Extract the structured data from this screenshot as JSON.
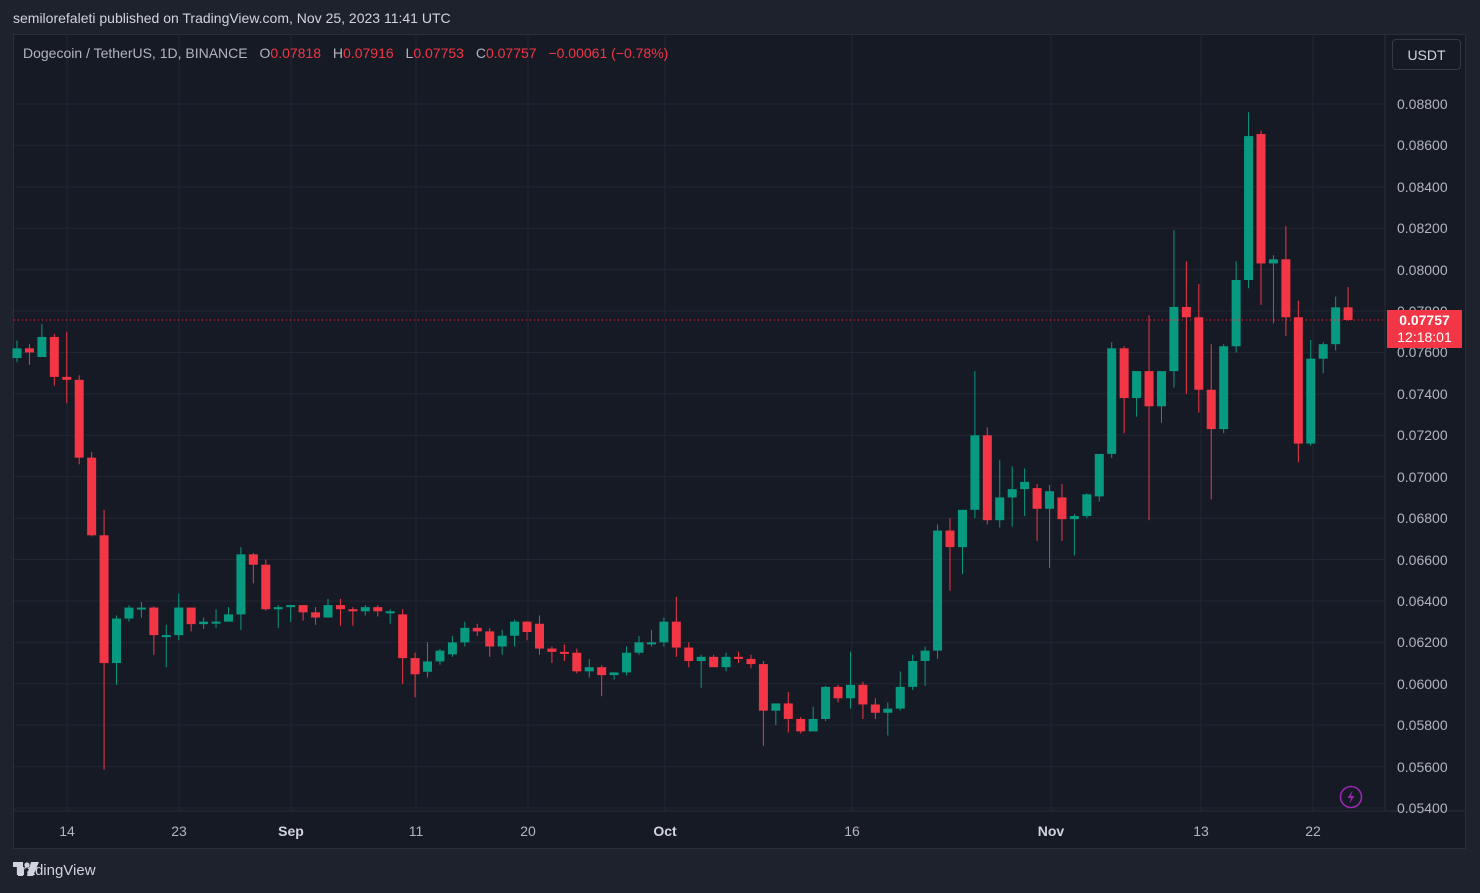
{
  "header": {
    "published_by": "semilorefaleti published on TradingView.com, Nov 25, 2023 11:41 UTC"
  },
  "legend": {
    "symbol": "Dogecoin / TetherUS, 1D, BINANCE",
    "open_label": "O",
    "open": "0.07818",
    "high_label": "H",
    "high": "0.07916",
    "low_label": "L",
    "low": "0.07753",
    "close_label": "C",
    "close": "0.07757",
    "change": "−0.00061 (−0.78%)"
  },
  "currency_button": "USDT",
  "last_price": {
    "value": "0.07757",
    "countdown": "12:18:01"
  },
  "price_axis": [
    "0.08800",
    "0.08600",
    "0.08400",
    "0.08200",
    "0.08000",
    "0.07800",
    "0.07600",
    "0.07400",
    "0.07200",
    "0.07000",
    "0.06800",
    "0.06600",
    "0.06400",
    "0.06200",
    "0.06000",
    "0.05800",
    "0.05600",
    "0.05400"
  ],
  "time_axis": [
    {
      "label": "14",
      "bold": false
    },
    {
      "label": "23",
      "bold": false
    },
    {
      "label": "Sep",
      "bold": true
    },
    {
      "label": "11",
      "bold": false
    },
    {
      "label": "20",
      "bold": false
    },
    {
      "label": "Oct",
      "bold": true
    },
    {
      "label": "16",
      "bold": false
    },
    {
      "label": "Nov",
      "bold": true
    },
    {
      "label": "13",
      "bold": false
    },
    {
      "label": "22",
      "bold": false
    }
  ],
  "footer": {
    "brand": "TradingView"
  },
  "colors": {
    "up": "#089981",
    "down": "#f23645",
    "background": "#161a25",
    "grid": "#232632",
    "text": "#b2b5be",
    "accent_bolt": "#9c27b0"
  },
  "chart_data": {
    "type": "candlestick",
    "title": "Dogecoin / TetherUS, 1D, BINANCE",
    "xlabel": "",
    "ylabel": "USDT",
    "ylim": [
      0.0535,
      0.0893
    ],
    "grid": true,
    "x_ticks": [
      "14",
      "23",
      "Sep",
      "11",
      "20",
      "Oct",
      "16",
      "Nov",
      "13",
      "22"
    ],
    "y_ticks": [
      0.054,
      0.056,
      0.058,
      0.06,
      0.062,
      0.064,
      0.066,
      0.068,
      0.07,
      0.072,
      0.074,
      0.076,
      0.078,
      0.08,
      0.082,
      0.084,
      0.086,
      0.088
    ],
    "last_price_line": 0.07757,
    "candles": [
      {
        "date": "Aug 10",
        "o": 0.07573,
        "h": 0.07658,
        "l": 0.07553,
        "c": 0.0762
      },
      {
        "date": "Aug 11",
        "o": 0.0762,
        "h": 0.0764,
        "l": 0.0754,
        "c": 0.076
      },
      {
        "date": "Aug 12",
        "o": 0.07578,
        "h": 0.07738,
        "l": 0.07578,
        "c": 0.07675
      },
      {
        "date": "Aug 13",
        "o": 0.07675,
        "h": 0.0769,
        "l": 0.0744,
        "c": 0.07482
      },
      {
        "date": "Aug 14",
        "o": 0.07482,
        "h": 0.077,
        "l": 0.07355,
        "c": 0.07468
      },
      {
        "date": "Aug 15",
        "o": 0.07468,
        "h": 0.0749,
        "l": 0.0706,
        "c": 0.07092
      },
      {
        "date": "Aug 16",
        "o": 0.07092,
        "h": 0.0712,
        "l": 0.06712,
        "c": 0.06717
      },
      {
        "date": "Aug 17",
        "o": 0.06717,
        "h": 0.0684,
        "l": 0.05585,
        "c": 0.061
      },
      {
        "date": "Aug 18",
        "o": 0.061,
        "h": 0.0633,
        "l": 0.05995,
        "c": 0.06315
      },
      {
        "date": "Aug 19",
        "o": 0.06315,
        "h": 0.06378,
        "l": 0.063,
        "c": 0.06368
      },
      {
        "date": "Aug 20",
        "o": 0.06368,
        "h": 0.06395,
        "l": 0.06318,
        "c": 0.06368
      },
      {
        "date": "Aug 21",
        "o": 0.06368,
        "h": 0.06373,
        "l": 0.0614,
        "c": 0.06235
      },
      {
        "date": "Aug 22",
        "o": 0.06235,
        "h": 0.06285,
        "l": 0.0608,
        "c": 0.06235
      },
      {
        "date": "Aug 23",
        "o": 0.06235,
        "h": 0.06435,
        "l": 0.0621,
        "c": 0.06368
      },
      {
        "date": "Aug 24",
        "o": 0.06368,
        "h": 0.06368,
        "l": 0.06253,
        "c": 0.06288
      },
      {
        "date": "Aug 25",
        "o": 0.06288,
        "h": 0.0632,
        "l": 0.06265,
        "c": 0.063
      },
      {
        "date": "Aug 26",
        "o": 0.063,
        "h": 0.0636,
        "l": 0.0627,
        "c": 0.063
      },
      {
        "date": "Aug 27",
        "o": 0.063,
        "h": 0.0637,
        "l": 0.063,
        "c": 0.06335
      },
      {
        "date": "Aug 28",
        "o": 0.06335,
        "h": 0.0666,
        "l": 0.0626,
        "c": 0.06625
      },
      {
        "date": "Aug 29",
        "o": 0.06625,
        "h": 0.06632,
        "l": 0.06485,
        "c": 0.06575
      },
      {
        "date": "Aug 30",
        "o": 0.06575,
        "h": 0.066,
        "l": 0.06353,
        "c": 0.0636
      },
      {
        "date": "Aug 31",
        "o": 0.0636,
        "h": 0.0638,
        "l": 0.0627,
        "c": 0.0637
      },
      {
        "date": "Sep 1",
        "o": 0.0637,
        "h": 0.06378,
        "l": 0.06298,
        "c": 0.0638
      },
      {
        "date": "Sep 2",
        "o": 0.0638,
        "h": 0.0638,
        "l": 0.06305,
        "c": 0.06345
      },
      {
        "date": "Sep 3",
        "o": 0.06345,
        "h": 0.0637,
        "l": 0.06285,
        "c": 0.0632
      },
      {
        "date": "Sep 4",
        "o": 0.0632,
        "h": 0.0641,
        "l": 0.0633,
        "c": 0.0638
      },
      {
        "date": "Sep 5",
        "o": 0.0638,
        "h": 0.0641,
        "l": 0.0628,
        "c": 0.0636
      },
      {
        "date": "Sep 6",
        "o": 0.0636,
        "h": 0.0637,
        "l": 0.0628,
        "c": 0.0635
      },
      {
        "date": "Sep 7",
        "o": 0.0635,
        "h": 0.0638,
        "l": 0.0633,
        "c": 0.0637
      },
      {
        "date": "Sep 8",
        "o": 0.0637,
        "h": 0.0638,
        "l": 0.06325,
        "c": 0.0635
      },
      {
        "date": "Sep 9",
        "o": 0.0635,
        "h": 0.0636,
        "l": 0.0629,
        "c": 0.0635
      },
      {
        "date": "Sep 10",
        "o": 0.06335,
        "h": 0.0636,
        "l": 0.06,
        "c": 0.06124
      },
      {
        "date": "Sep 11",
        "o": 0.06124,
        "h": 0.0615,
        "l": 0.05935,
        "c": 0.06046
      },
      {
        "date": "Sep 12",
        "o": 0.06058,
        "h": 0.062,
        "l": 0.0603,
        "c": 0.06108
      },
      {
        "date": "Sep 13",
        "o": 0.06108,
        "h": 0.06168,
        "l": 0.06092,
        "c": 0.0616
      },
      {
        "date": "Sep 14",
        "o": 0.06142,
        "h": 0.0623,
        "l": 0.0613,
        "c": 0.062
      },
      {
        "date": "Sep 15",
        "o": 0.062,
        "h": 0.063,
        "l": 0.0618,
        "c": 0.0627
      },
      {
        "date": "Sep 16",
        "o": 0.0627,
        "h": 0.0629,
        "l": 0.0623,
        "c": 0.06253
      },
      {
        "date": "Sep 17",
        "o": 0.06253,
        "h": 0.06268,
        "l": 0.0613,
        "c": 0.0618
      },
      {
        "date": "Sep 18",
        "o": 0.0618,
        "h": 0.0626,
        "l": 0.0614,
        "c": 0.06232
      },
      {
        "date": "Sep 19",
        "o": 0.06232,
        "h": 0.0631,
        "l": 0.0618,
        "c": 0.063
      },
      {
        "date": "Sep 20",
        "o": 0.063,
        "h": 0.06302,
        "l": 0.0621,
        "c": 0.0625
      },
      {
        "date": "Sep 21",
        "o": 0.0629,
        "h": 0.0633,
        "l": 0.0614,
        "c": 0.0617
      },
      {
        "date": "Sep 22",
        "o": 0.0617,
        "h": 0.0618,
        "l": 0.061,
        "c": 0.06154
      },
      {
        "date": "Sep 23",
        "o": 0.06154,
        "h": 0.0619,
        "l": 0.0611,
        "c": 0.0615
      },
      {
        "date": "Sep 24",
        "o": 0.0615,
        "h": 0.0617,
        "l": 0.0605,
        "c": 0.0606
      },
      {
        "date": "Sep 25",
        "o": 0.0606,
        "h": 0.0612,
        "l": 0.0603,
        "c": 0.0608
      },
      {
        "date": "Sep 26",
        "o": 0.0608,
        "h": 0.0609,
        "l": 0.0594,
        "c": 0.06042
      },
      {
        "date": "Sep 27",
        "o": 0.06042,
        "h": 0.0605,
        "l": 0.0602,
        "c": 0.06055
      },
      {
        "date": "Sep 28",
        "o": 0.06055,
        "h": 0.0618,
        "l": 0.0604,
        "c": 0.0615
      },
      {
        "date": "Sep 29",
        "o": 0.0615,
        "h": 0.0623,
        "l": 0.0614,
        "c": 0.062
      },
      {
        "date": "Sep 30",
        "o": 0.062,
        "h": 0.0626,
        "l": 0.0618,
        "c": 0.062
      },
      {
        "date": "Oct 1",
        "o": 0.062,
        "h": 0.0632,
        "l": 0.0618,
        "c": 0.063
      },
      {
        "date": "Oct 2",
        "o": 0.063,
        "h": 0.0642,
        "l": 0.0613,
        "c": 0.06175
      },
      {
        "date": "Oct 3",
        "o": 0.06175,
        "h": 0.062,
        "l": 0.0608,
        "c": 0.0611
      },
      {
        "date": "Oct 4",
        "o": 0.0611,
        "h": 0.0614,
        "l": 0.0598,
        "c": 0.0613
      },
      {
        "date": "Oct 5",
        "o": 0.0613,
        "h": 0.0614,
        "l": 0.0608,
        "c": 0.0608
      },
      {
        "date": "Oct 6",
        "o": 0.0608,
        "h": 0.0615,
        "l": 0.0606,
        "c": 0.0613
      },
      {
        "date": "Oct 7",
        "o": 0.0613,
        "h": 0.06155,
        "l": 0.061,
        "c": 0.0612
      },
      {
        "date": "Oct 8",
        "o": 0.0612,
        "h": 0.0614,
        "l": 0.06075,
        "c": 0.06095
      },
      {
        "date": "Oct 9",
        "o": 0.06095,
        "h": 0.0611,
        "l": 0.057,
        "c": 0.0587
      },
      {
        "date": "Oct 10",
        "o": 0.0587,
        "h": 0.0588,
        "l": 0.058,
        "c": 0.05905
      },
      {
        "date": "Oct 11",
        "o": 0.05905,
        "h": 0.0596,
        "l": 0.05765,
        "c": 0.0583
      },
      {
        "date": "Oct 12",
        "o": 0.0583,
        "h": 0.0584,
        "l": 0.0576,
        "c": 0.0577
      },
      {
        "date": "Oct 13",
        "o": 0.0577,
        "h": 0.0589,
        "l": 0.0579,
        "c": 0.0583
      },
      {
        "date": "Oct 14",
        "o": 0.0583,
        "h": 0.0599,
        "l": 0.0582,
        "c": 0.05985
      },
      {
        "date": "Oct 15",
        "o": 0.05985,
        "h": 0.05995,
        "l": 0.0591,
        "c": 0.0593
      },
      {
        "date": "Oct 16",
        "o": 0.0593,
        "h": 0.06155,
        "l": 0.0588,
        "c": 0.05995
      },
      {
        "date": "Oct 17",
        "o": 0.05995,
        "h": 0.0601,
        "l": 0.0583,
        "c": 0.059
      },
      {
        "date": "Oct 18",
        "o": 0.059,
        "h": 0.0593,
        "l": 0.0583,
        "c": 0.0586
      },
      {
        "date": "Oct 19",
        "o": 0.0586,
        "h": 0.0591,
        "l": 0.0575,
        "c": 0.0588
      },
      {
        "date": "Oct 20",
        "o": 0.0588,
        "h": 0.0606,
        "l": 0.0587,
        "c": 0.05985
      },
      {
        "date": "Oct 21",
        "o": 0.05985,
        "h": 0.0614,
        "l": 0.0597,
        "c": 0.0611
      },
      {
        "date": "Oct 22",
        "o": 0.0611,
        "h": 0.0618,
        "l": 0.0599,
        "c": 0.0616
      },
      {
        "date": "Oct 23",
        "o": 0.0616,
        "h": 0.0677,
        "l": 0.0612,
        "c": 0.0674
      },
      {
        "date": "Oct 24",
        "o": 0.0674,
        "h": 0.068,
        "l": 0.0645,
        "c": 0.0666
      },
      {
        "date": "Oct 25",
        "o": 0.0666,
        "h": 0.0684,
        "l": 0.0653,
        "c": 0.0684
      },
      {
        "date": "Oct 26",
        "o": 0.0684,
        "h": 0.0751,
        "l": 0.068,
        "c": 0.072
      },
      {
        "date": "Oct 27",
        "o": 0.072,
        "h": 0.07238,
        "l": 0.0677,
        "c": 0.0679
      },
      {
        "date": "Oct 28",
        "o": 0.0679,
        "h": 0.0708,
        "l": 0.06755,
        "c": 0.069
      },
      {
        "date": "Oct 29",
        "o": 0.069,
        "h": 0.0705,
        "l": 0.0676,
        "c": 0.0694
      },
      {
        "date": "Oct 30",
        "o": 0.0694,
        "h": 0.0704,
        "l": 0.0681,
        "c": 0.06975
      },
      {
        "date": "Oct 31",
        "o": 0.06945,
        "h": 0.06965,
        "l": 0.0669,
        "c": 0.06845
      },
      {
        "date": "Nov 1",
        "o": 0.06845,
        "h": 0.0696,
        "l": 0.0656,
        "c": 0.0693
      },
      {
        "date": "Nov 2",
        "o": 0.069,
        "h": 0.06965,
        "l": 0.0669,
        "c": 0.06795
      },
      {
        "date": "Nov 3",
        "o": 0.06795,
        "h": 0.0682,
        "l": 0.0662,
        "c": 0.0681
      },
      {
        "date": "Nov 4",
        "o": 0.0681,
        "h": 0.0692,
        "l": 0.068,
        "c": 0.06915
      },
      {
        "date": "Nov 5",
        "o": 0.06905,
        "h": 0.0711,
        "l": 0.0688,
        "c": 0.0711
      },
      {
        "date": "Nov 6",
        "o": 0.0711,
        "h": 0.0765,
        "l": 0.0709,
        "c": 0.0762
      },
      {
        "date": "Nov 7",
        "o": 0.0762,
        "h": 0.0763,
        "l": 0.0721,
        "c": 0.0738
      },
      {
        "date": "Nov 8",
        "o": 0.0738,
        "h": 0.07445,
        "l": 0.0729,
        "c": 0.0751
      },
      {
        "date": "Nov 9",
        "o": 0.0751,
        "h": 0.0778,
        "l": 0.0679,
        "c": 0.0734
      },
      {
        "date": "Nov 10",
        "o": 0.0734,
        "h": 0.0748,
        "l": 0.0726,
        "c": 0.0751
      },
      {
        "date": "Nov 11",
        "o": 0.0751,
        "h": 0.0819,
        "l": 0.0743,
        "c": 0.0782
      },
      {
        "date": "Nov 12",
        "o": 0.0782,
        "h": 0.0804,
        "l": 0.074,
        "c": 0.0777
      },
      {
        "date": "Nov 13",
        "o": 0.0777,
        "h": 0.0793,
        "l": 0.0731,
        "c": 0.0742
      },
      {
        "date": "Nov 14",
        "o": 0.0742,
        "h": 0.0764,
        "l": 0.0689,
        "c": 0.0723
      },
      {
        "date": "Nov 15",
        "o": 0.0723,
        "h": 0.0764,
        "l": 0.0721,
        "c": 0.0763
      },
      {
        "date": "Nov 16",
        "o": 0.0763,
        "h": 0.0804,
        "l": 0.076,
        "c": 0.0795
      },
      {
        "date": "Nov 17",
        "o": 0.0795,
        "h": 0.0876,
        "l": 0.0791,
        "c": 0.08645
      },
      {
        "date": "Nov 18",
        "o": 0.08655,
        "h": 0.0867,
        "l": 0.0783,
        "c": 0.0803
      },
      {
        "date": "Nov 19",
        "o": 0.0803,
        "h": 0.0807,
        "l": 0.0774,
        "c": 0.0805
      },
      {
        "date": "Nov 20",
        "o": 0.0805,
        "h": 0.0821,
        "l": 0.0768,
        "c": 0.0777
      },
      {
        "date": "Nov 21",
        "o": 0.0777,
        "h": 0.0785,
        "l": 0.0707,
        "c": 0.0716
      },
      {
        "date": "Nov 22",
        "o": 0.0716,
        "h": 0.0766,
        "l": 0.0715,
        "c": 0.0757
      },
      {
        "date": "Nov 23",
        "o": 0.0757,
        "h": 0.0765,
        "l": 0.075,
        "c": 0.0764
      },
      {
        "date": "Nov 24",
        "o": 0.0764,
        "h": 0.0787,
        "l": 0.0761,
        "c": 0.07818
      },
      {
        "date": "Nov 25",
        "o": 0.07818,
        "h": 0.07916,
        "l": 0.07753,
        "c": 0.07757
      }
    ]
  }
}
